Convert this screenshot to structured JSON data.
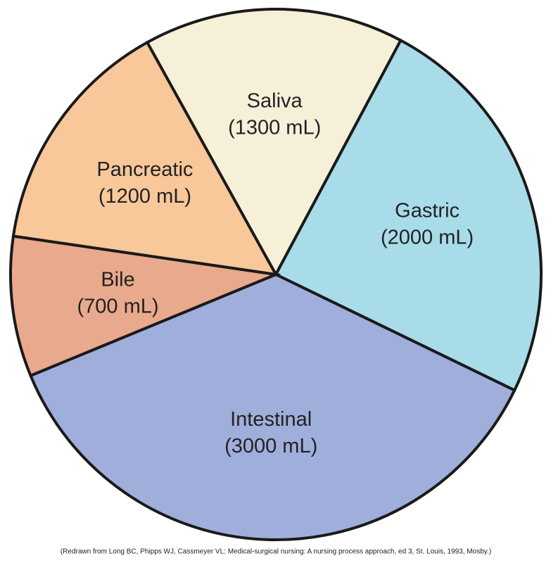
{
  "chart_data": {
    "type": "pie",
    "categories": [
      "Saliva",
      "Gastric",
      "Intestinal",
      "Bile",
      "Pancreatic"
    ],
    "values": [
      1300,
      2000,
      3000,
      700,
      1200
    ],
    "value_labels": [
      "(1300 mL)",
      "(2000 mL)",
      "(3000 mL)",
      "(700 mL)",
      "(1200 mL)"
    ],
    "colors": [
      "#f6f0d9",
      "#a8dce9",
      "#a0aedb",
      "#e9a98c",
      "#f8c79a"
    ],
    "source": "(Redrawn from Long BC, Phipps WJ, Cassmeyer VL: Medical-surgical nursing: A nursing process approach, ed 3, St. Louis, 1993, Mosby.)"
  }
}
